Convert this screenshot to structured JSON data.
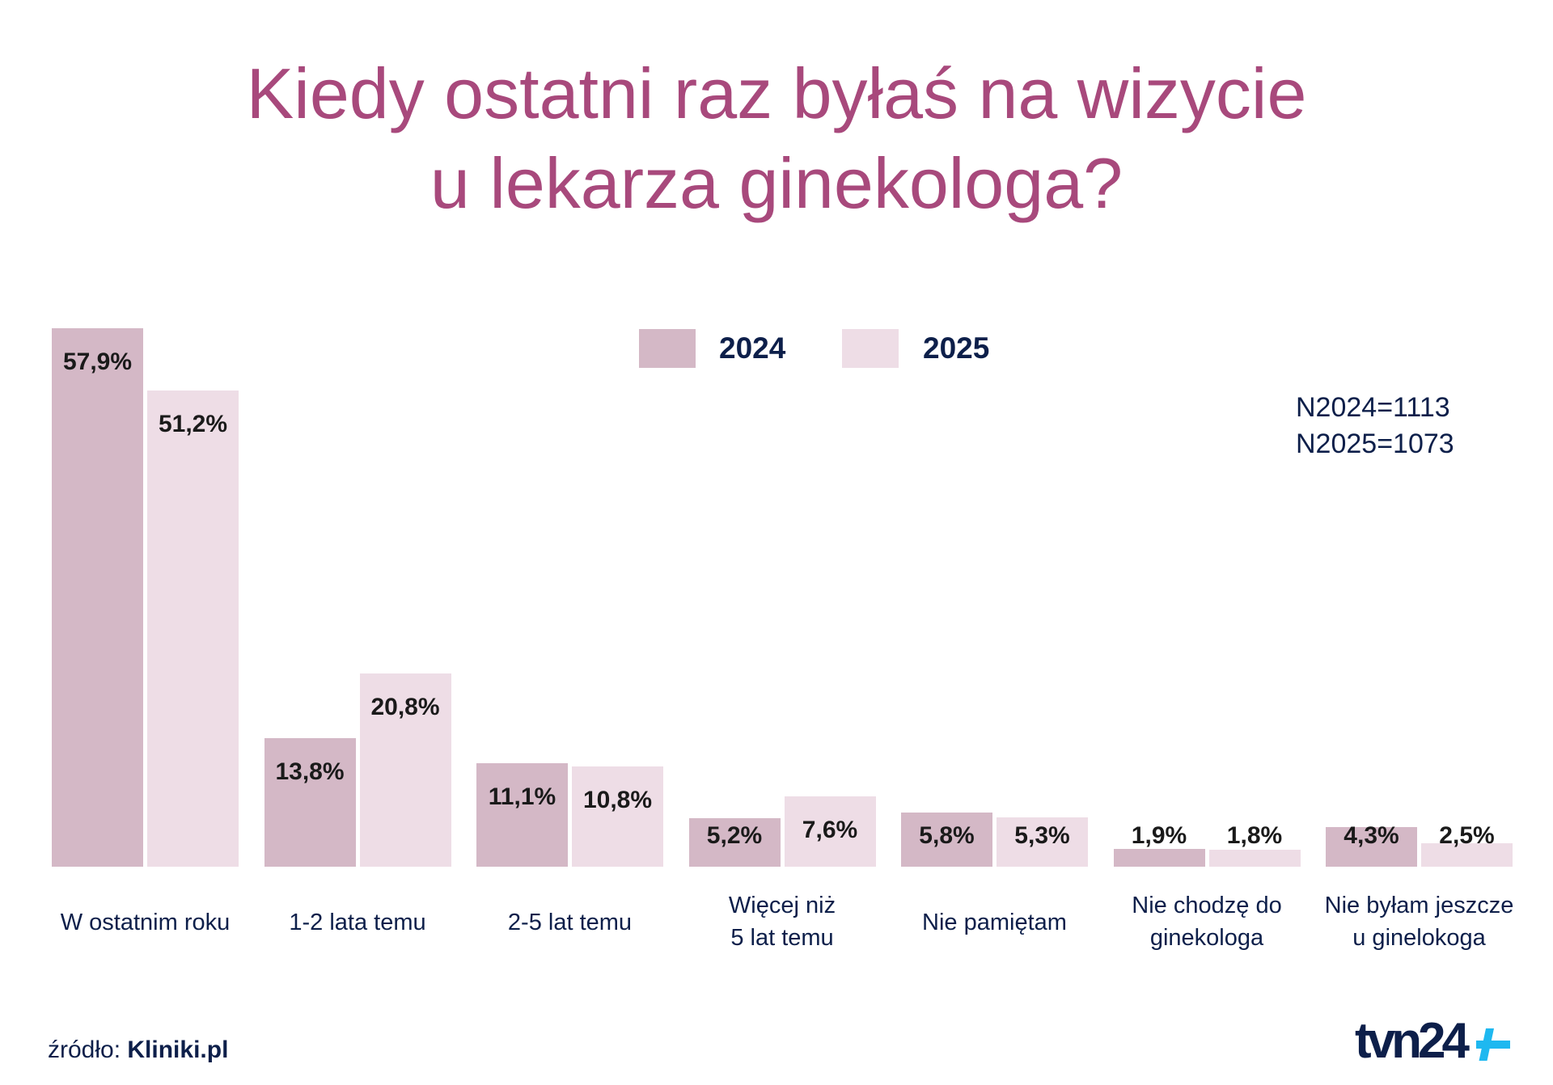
{
  "title": "Kiedy ostatni raz byłaś na wizycie\nu lekarza ginekologa?",
  "legend": [
    {
      "label": "2024",
      "color": "#d4b8c6"
    },
    {
      "label": "2025",
      "color": "#eedde6"
    }
  ],
  "sample_sizes": [
    "N2024=1113",
    "N2025=1073"
  ],
  "source": {
    "prefix": "źródło:",
    "name": "Kliniki.pl"
  },
  "logo": {
    "text": "tvn24+",
    "colors": {
      "main": "#0d1f4a",
      "plus": "#1eb8f0"
    }
  },
  "chart_data": {
    "type": "bar",
    "categories": [
      "W ostatnim roku",
      "1-2 lata temu",
      "2-5 lat temu",
      "Więcej niż\n5 lat temu",
      "Nie pamiętam",
      "Nie chodzę do\nginekologa",
      "Nie byłam jeszcze\nu ginelokoga"
    ],
    "series": [
      {
        "name": "2024",
        "values": [
          57.9,
          13.8,
          11.1,
          5.2,
          5.8,
          1.9,
          4.3
        ],
        "labels": [
          "57,9%",
          "13,8%",
          "11,1%",
          "5,2%",
          "5,8%",
          "1,9%",
          "4,3%"
        ],
        "color": "#d4b8c6"
      },
      {
        "name": "2025",
        "values": [
          51.2,
          20.8,
          10.8,
          7.6,
          5.3,
          1.8,
          2.5
        ],
        "labels": [
          "51,2%",
          "20,8%",
          "10,8%",
          "7,6%",
          "5,3%",
          "1,8%",
          "2,5%"
        ],
        "color": "#eedde6"
      }
    ],
    "ylim": [
      0,
      57.9
    ],
    "grid": false,
    "legend_position": "top-center"
  }
}
